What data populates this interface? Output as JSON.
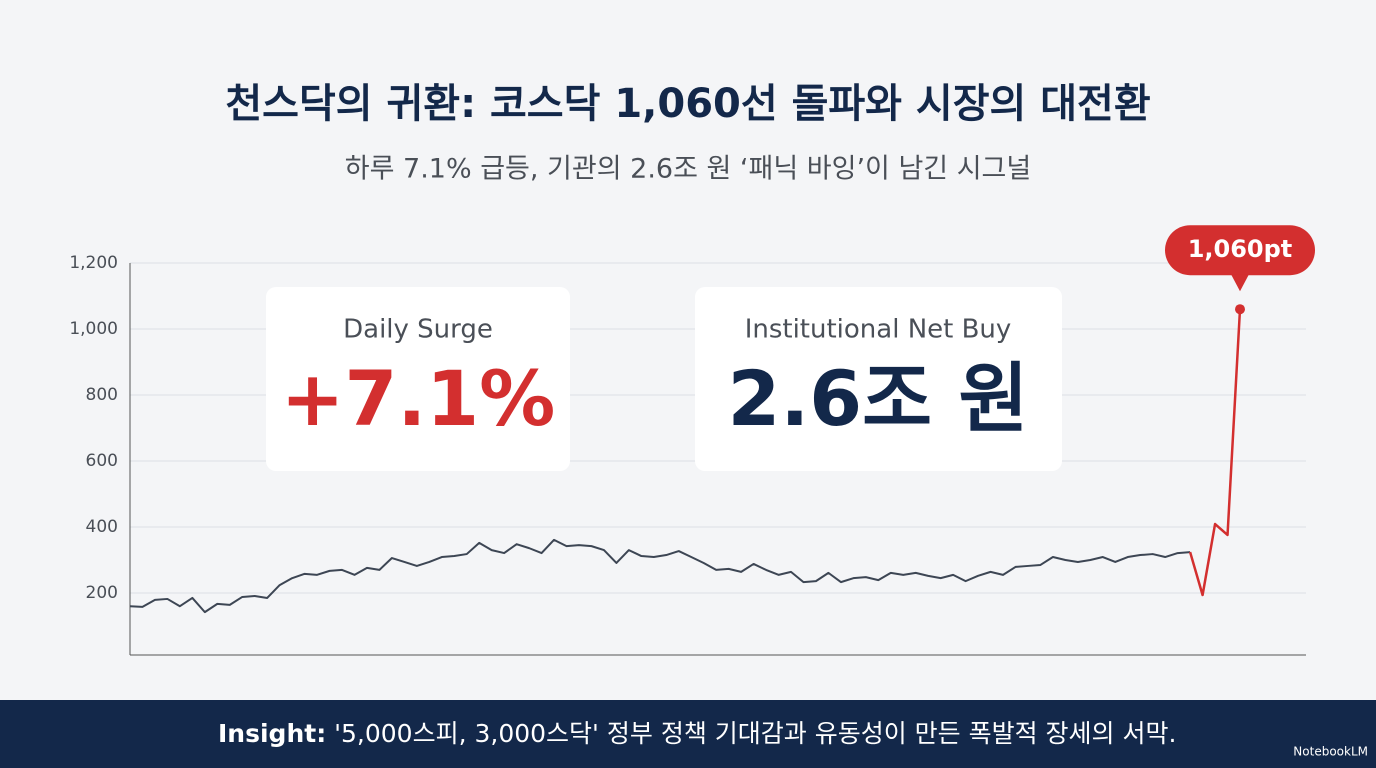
{
  "header": {
    "title": "천스닥의 귀환: 코스닥 1,060선 돌파와 시장의 대전환",
    "subtitle": "하루 7.1% 급등, 기관의 2.6조 원 ‘패닉 바잉’이 남긴 시그널"
  },
  "cards": [
    {
      "label": "Daily Surge",
      "value": "+7.1%"
    },
    {
      "label": "Institutional Net Buy",
      "value": "2.6조 원"
    }
  ],
  "footer": {
    "label": "Insight:",
    "text": " '5,000스피, 3,000스닥' 정부 정책 기대감과 유동성이 만든 폭발적 장세의 서막."
  },
  "brand": "NotebookLM",
  "chart_data": {
    "type": "line",
    "annotation": "1,060pt",
    "categories": [
      null,
      null,
      null,
      null,
      null,
      null,
      null,
      null,
      null,
      null,
      null,
      null,
      null,
      null,
      null,
      null,
      null,
      null,
      null,
      null,
      null,
      null,
      null,
      null,
      null,
      null,
      null,
      null,
      null,
      null,
      null,
      null,
      null,
      null,
      null,
      null,
      null,
      null,
      null,
      null,
      null,
      null,
      null,
      null,
      null,
      null,
      null,
      null,
      null,
      null,
      null,
      null,
      null,
      null,
      null,
      null,
      null,
      null,
      null,
      null,
      null,
      null,
      null,
      null,
      null,
      null,
      null,
      null,
      null,
      null,
      null,
      null,
      null,
      null,
      null,
      null,
      null,
      null,
      null,
      null,
      null,
      null,
      null,
      null,
      null,
      null,
      null,
      null,
      null,
      null
    ],
    "series": [
      {
        "color": "#3d4654",
        "values": [
          160,
          158,
          179,
          182,
          160,
          185,
          142,
          167,
          164,
          188,
          191,
          185,
          224,
          245,
          258,
          255,
          267,
          270,
          255,
          276,
          270,
          306,
          294,
          282,
          294,
          309,
          312,
          318,
          352,
          330,
          321,
          348,
          336,
          321,
          361,
          342,
          345,
          342,
          330,
          291,
          330,
          312,
          309,
          315,
          327,
          309,
          291,
          270,
          273,
          264,
          288,
          270,
          255,
          264,
          233,
          236,
          261,
          233,
          245,
          248,
          239,
          261,
          255,
          261,
          252,
          245,
          255,
          236,
          252,
          264,
          255,
          279,
          282,
          285,
          309,
          300,
          294,
          300,
          309,
          294,
          309,
          315,
          318,
          309,
          321,
          324,
          null,
          null,
          null,
          null
        ]
      },
      {
        "color": "#d32f2f",
        "values": [
          null,
          null,
          null,
          null,
          null,
          null,
          null,
          null,
          null,
          null,
          null,
          null,
          null,
          null,
          null,
          null,
          null,
          null,
          null,
          null,
          null,
          null,
          null,
          null,
          null,
          null,
          null,
          null,
          null,
          null,
          null,
          null,
          null,
          null,
          null,
          null,
          null,
          null,
          null,
          null,
          null,
          null,
          null,
          null,
          null,
          null,
          null,
          null,
          null,
          null,
          null,
          null,
          null,
          null,
          null,
          null,
          null,
          null,
          null,
          null,
          null,
          null,
          null,
          null,
          null,
          null,
          null,
          null,
          null,
          null,
          null,
          null,
          null,
          null,
          null,
          null,
          null,
          null,
          null,
          null,
          null,
          null,
          null,
          null,
          null,
          324,
          194,
          409,
          376,
          1060
        ]
      }
    ],
    "ylim": [
      0,
      1200
    ],
    "yticks": [
      200,
      400,
      600,
      800,
      {
        "value": 1000,
        "label": "1,000"
      },
      {
        "value": 1200,
        "label": "1,200"
      }
    ],
    "grid": true
  }
}
